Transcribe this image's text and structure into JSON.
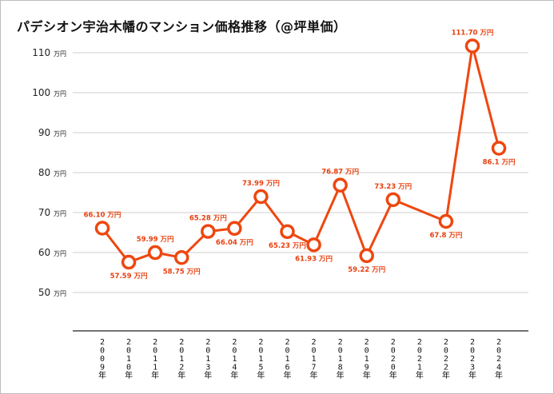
{
  "chart_data": {
    "type": "line",
    "title": "パデシオン宇治木幡のマンション価格推移（@坪単価）",
    "xlabel": "",
    "ylabel": "",
    "y_unit": "万円",
    "ylim": [
      40,
      112
    ],
    "yticks": [
      50,
      60,
      70,
      80,
      90,
      100,
      110
    ],
    "grid": true,
    "color": "#ee4710",
    "categories": [
      "2009年",
      "2010年",
      "2011年",
      "2012年",
      "2013年",
      "2014年",
      "2015年",
      "2016年",
      "2017年",
      "2018年",
      "2019年",
      "2020年",
      "2021年",
      "2022年",
      "2023年",
      "2024年"
    ],
    "values": [
      66.1,
      57.59,
      59.99,
      58.75,
      65.28,
      66.04,
      73.99,
      65.23,
      61.93,
      76.87,
      59.22,
      73.23,
      null,
      67.8,
      111.7,
      86.1
    ],
    "data_labels": [
      "66.10 万円",
      "57.59 万円",
      "59.99 万円",
      "58.75 万円",
      "65.28 万円",
      "66.04 万円",
      "73.99 万円",
      "65.23 万円",
      "61.93 万円",
      "76.87 万円",
      "59.22 万円",
      "73.23 万円",
      "",
      "67.8 万円",
      "111.70 万円",
      "86.1 万円"
    ],
    "label_positions": [
      "above",
      "below",
      "above",
      "below",
      "above",
      "below",
      "above",
      "below",
      "below",
      "above",
      "below",
      "above",
      "",
      "below",
      "above",
      "below"
    ]
  }
}
